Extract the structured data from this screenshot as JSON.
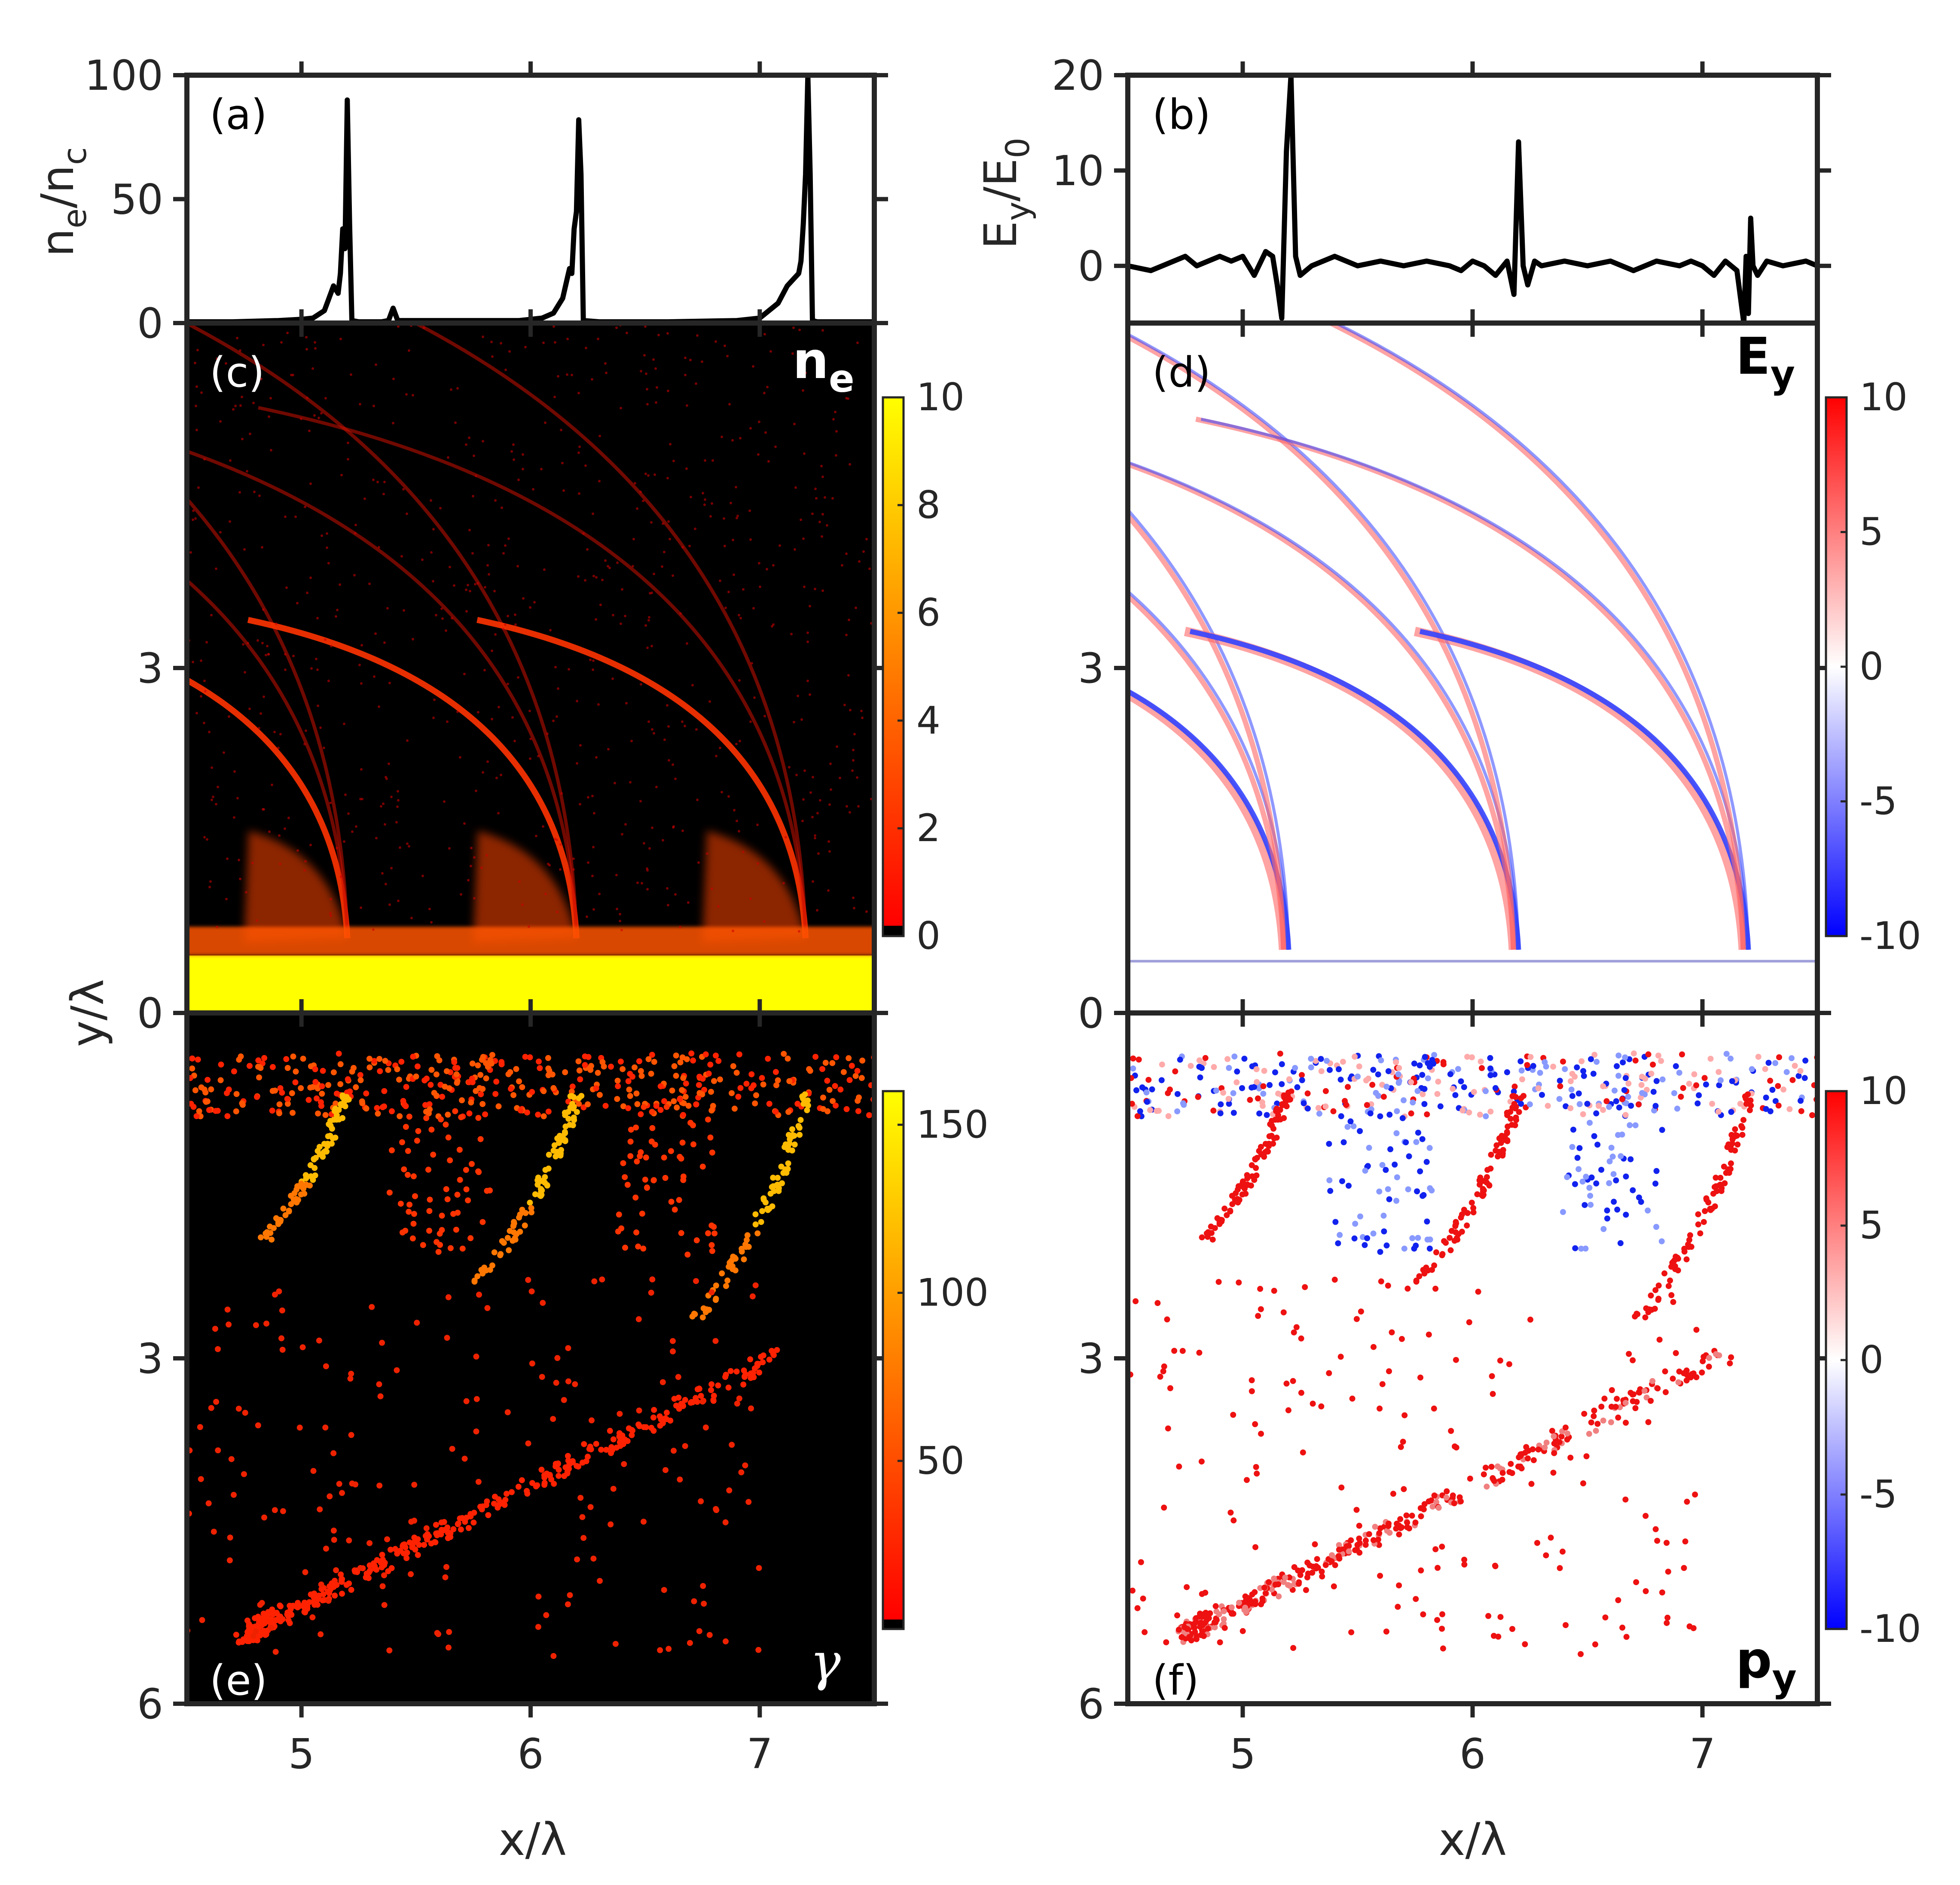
{
  "chart_data": [
    {
      "id": "a",
      "type": "line",
      "panel_label": "(a)",
      "ylabel": {
        "base": "n",
        "sub1": "e",
        "mid": "/n",
        "sub2": "c"
      },
      "xlim": [
        4.5,
        7.5
      ],
      "ylim": [
        0,
        100
      ],
      "yticks": [
        0,
        50,
        100
      ],
      "ytick_labels": [
        "0",
        "50",
        "100"
      ],
      "xticks": [
        5,
        6,
        7
      ],
      "series": [
        {
          "color": "#000000",
          "x": [
            4.5,
            4.7,
            4.9,
            5.0,
            5.05,
            5.1,
            5.12,
            5.14,
            5.16,
            5.17,
            5.18,
            5.19,
            5.2,
            5.21,
            5.22,
            5.25,
            5.35,
            5.38,
            5.4,
            5.42,
            5.6,
            5.8,
            5.95,
            6.05,
            6.1,
            6.14,
            6.16,
            6.17,
            6.18,
            6.19,
            6.2,
            6.21,
            6.22,
            6.23,
            6.3,
            6.6,
            6.9,
            7.0,
            7.08,
            7.12,
            7.15,
            7.17,
            7.18,
            7.19,
            7.2,
            7.21,
            7.22,
            7.23,
            7.25,
            7.3,
            7.5
          ],
          "y": [
            0.5,
            0.5,
            1,
            1.5,
            2,
            5,
            10,
            15,
            12,
            20,
            38,
            30,
            90,
            40,
            1,
            0.5,
            0.5,
            1,
            6,
            1,
            1,
            1,
            1,
            2,
            4,
            10,
            18,
            22,
            20,
            38,
            45,
            82,
            60,
            1,
            0.5,
            0.5,
            1,
            2,
            8,
            15,
            18,
            20,
            25,
            40,
            60,
            102,
            60,
            1,
            0.5,
            0.5,
            0.5
          ]
        }
      ]
    },
    {
      "id": "b",
      "type": "line",
      "panel_label": "(b)",
      "ylabel": {
        "base": "E",
        "sub1": "y",
        "mid": "/E",
        "sub2": "0"
      },
      "xlim": [
        4.5,
        7.5
      ],
      "ylim": [
        -6,
        20
      ],
      "yticks": [
        0,
        10,
        20
      ],
      "ytick_labels": [
        "0",
        "10",
        "20"
      ],
      "xticks": [
        5,
        6,
        7
      ],
      "series": [
        {
          "color": "#000000",
          "x": [
            4.5,
            4.6,
            4.7,
            4.75,
            4.8,
            4.9,
            4.95,
            5.0,
            5.05,
            5.1,
            5.13,
            5.15,
            5.17,
            5.19,
            5.21,
            5.23,
            5.25,
            5.3,
            5.4,
            5.5,
            5.6,
            5.7,
            5.8,
            5.9,
            5.95,
            6.0,
            6.05,
            6.1,
            6.15,
            6.18,
            6.2,
            6.22,
            6.24,
            6.27,
            6.3,
            6.4,
            6.5,
            6.6,
            6.7,
            6.8,
            6.9,
            6.95,
            7.0,
            7.05,
            7.1,
            7.15,
            7.18,
            7.19,
            7.2,
            7.21,
            7.22,
            7.24,
            7.28,
            7.35,
            7.45,
            7.5
          ],
          "y": [
            0,
            -0.5,
            0.5,
            1,
            0,
            1,
            0.5,
            1,
            -1,
            1.5,
            1,
            -2,
            -5.5,
            12,
            20,
            1,
            -1,
            0,
            1,
            0,
            0.5,
            0,
            0.5,
            0,
            -0.5,
            0.5,
            0,
            -1,
            0.5,
            -3,
            13,
            0,
            -2,
            0.5,
            0,
            0.5,
            0,
            0.5,
            -0.5,
            0.5,
            0,
            0.5,
            0,
            -1,
            0.5,
            -0.5,
            -6,
            1,
            -5,
            5,
            0,
            -1,
            0.5,
            0,
            0.5,
            0
          ]
        }
      ]
    },
    {
      "id": "c",
      "type": "heatmap",
      "panel_label": "(c)",
      "quantity": {
        "base": "n",
        "sub": "e"
      },
      "colormap": "black-red-yellow",
      "colormap_stops": [
        "#000000",
        "#ff0000",
        "#ffff00"
      ],
      "clim": [
        0,
        10
      ],
      "cbar_ticks": [
        0,
        2,
        4,
        6,
        8,
        10
      ],
      "cbar_tick_labels": [
        "0",
        "2",
        "4",
        "6",
        "8",
        "10"
      ],
      "xlim": [
        4.5,
        7.5
      ],
      "ylim": [
        0,
        6
      ],
      "yticks": [
        0,
        3
      ],
      "ytick_labels": [
        "0",
        "3"
      ],
      "xticks": [
        5,
        6,
        7
      ],
      "shock_x": [
        5.2,
        6.2,
        7.2
      ],
      "foil_y": 0.5,
      "background": "#000000"
    },
    {
      "id": "d",
      "type": "heatmap",
      "panel_label": "(d)",
      "quantity": {
        "base": "E",
        "sub": "y"
      },
      "colormap": "blue-white-red",
      "colormap_stops": [
        "#0000ff",
        "#ffffff",
        "#ff0000"
      ],
      "clim": [
        -10,
        10
      ],
      "cbar_ticks": [
        -10,
        -5,
        0,
        5,
        10
      ],
      "cbar_tick_labels": [
        "-10",
        "-5",
        "0",
        "5",
        "10"
      ],
      "xlim": [
        4.5,
        7.5
      ],
      "ylim": [
        0,
        6
      ],
      "yticks": [
        0,
        3
      ],
      "ytick_labels": [
        "0",
        "3"
      ],
      "xticks": [
        5,
        6,
        7
      ],
      "shock_x": [
        5.2,
        6.2,
        7.2
      ],
      "foil_y": 0.45,
      "background": "#ffffff"
    },
    {
      "id": "e",
      "type": "scatter",
      "panel_label": "(e)",
      "quantity": {
        "symbol": "γ"
      },
      "colormap": "black-red-yellow",
      "colormap_stops": [
        "#000000",
        "#ff0000",
        "#ffff00"
      ],
      "clim": [
        0,
        160
      ],
      "cbar_ticks": [
        50,
        100,
        150
      ],
      "cbar_tick_labels": [
        "50",
        "100",
        "150"
      ],
      "xlim": [
        4.5,
        7.5
      ],
      "ylim": [
        0,
        6
      ],
      "yticks": [
        0,
        3,
        6
      ],
      "ytick_labels": [
        "0",
        "3",
        "6"
      ],
      "xticks": [
        5,
        6,
        7
      ],
      "xtick_labels": [
        "5",
        "6",
        "7"
      ],
      "xlabel": "x/λ",
      "background": "#000000"
    },
    {
      "id": "f",
      "type": "scatter",
      "panel_label": "(f)",
      "quantity": {
        "base": "p",
        "sub": "y"
      },
      "colormap": "blue-white-red",
      "colormap_stops": [
        "#0000ff",
        "#ffffff",
        "#ff0000"
      ],
      "clim": [
        -10,
        10
      ],
      "cbar_ticks": [
        -10,
        -5,
        0,
        5,
        10
      ],
      "cbar_tick_labels": [
        "-10",
        "-5",
        "0",
        "5",
        "10"
      ],
      "xlim": [
        4.5,
        7.5
      ],
      "ylim": [
        0,
        6
      ],
      "yticks": [
        0,
        3,
        6
      ],
      "ytick_labels": [
        "0",
        "3",
        "6"
      ],
      "xticks": [
        5,
        6,
        7
      ],
      "xtick_labels": [
        "5",
        "6",
        "7"
      ],
      "xlabel": "x/λ",
      "background": "#ffffff"
    }
  ],
  "shared_ylabel": "y/λ"
}
